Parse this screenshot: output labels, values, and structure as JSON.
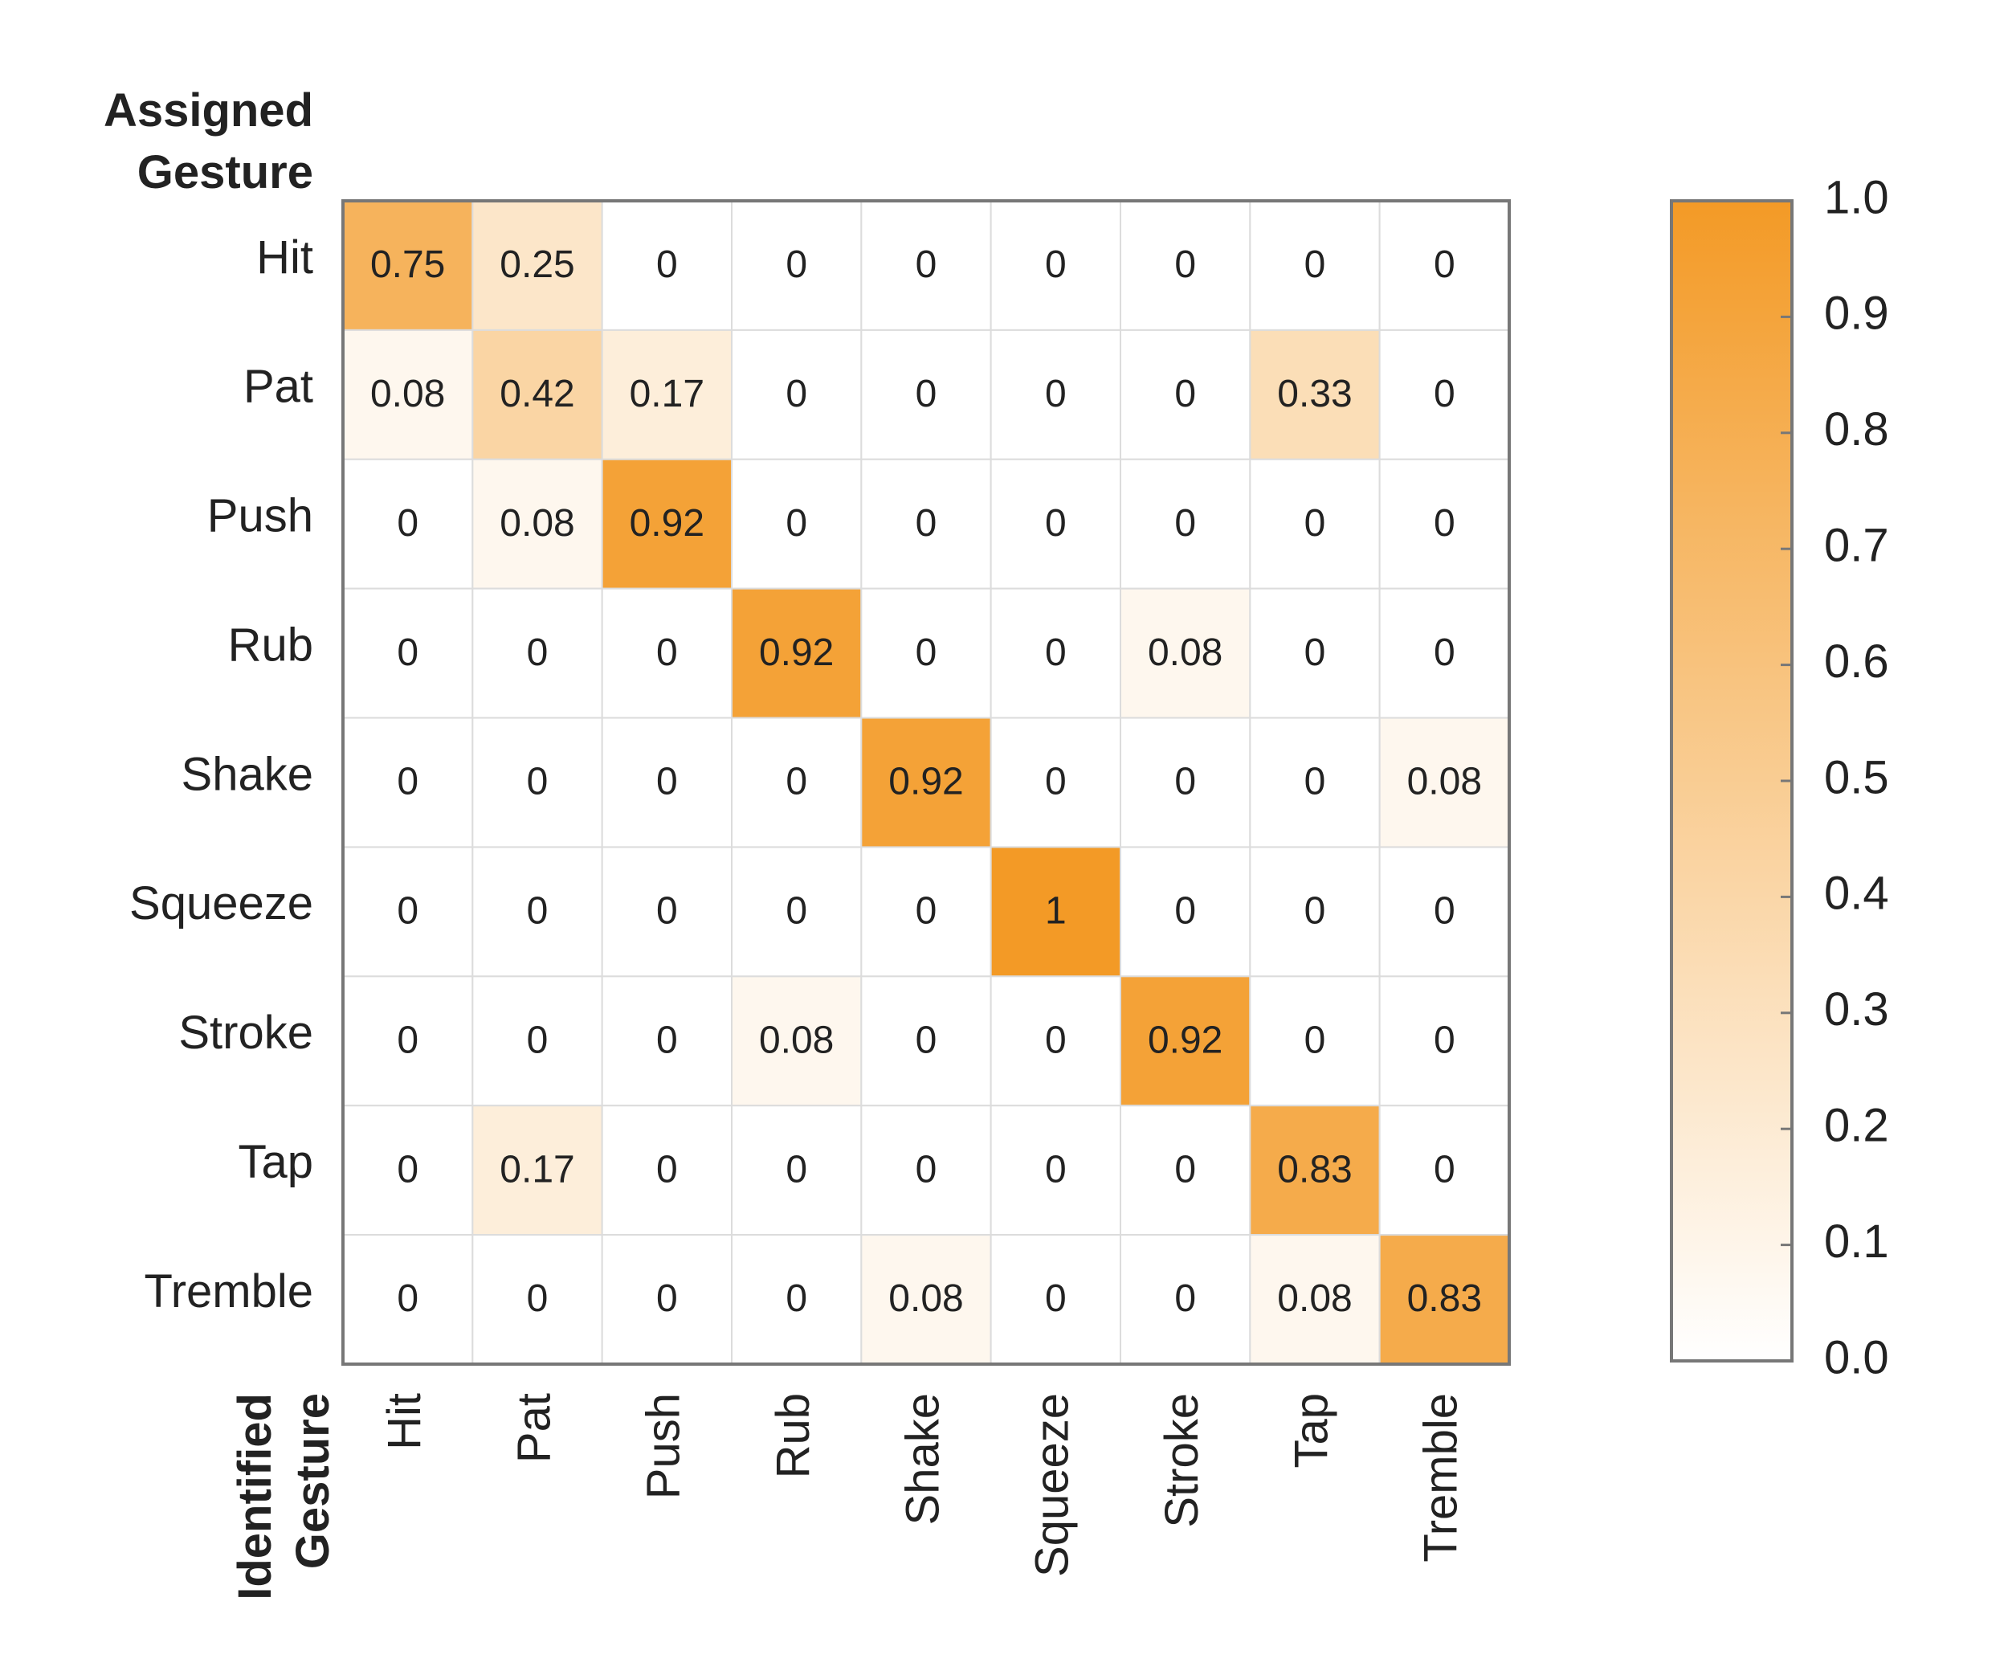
{
  "chart_data": {
    "type": "heatmap",
    "y_label": "Assigned Gesture",
    "x_label": "Identified Gesture",
    "y_categories": [
      "Hit",
      "Pat",
      "Push",
      "Rub",
      "Shake",
      "Squeeze",
      "Stroke",
      "Tap",
      "Tremble"
    ],
    "x_categories": [
      "Hit",
      "Pat",
      "Push",
      "Rub",
      "Shake",
      "Squeeze",
      "Stroke",
      "Tap",
      "Tremble"
    ],
    "values": [
      [
        0.75,
        0.25,
        0,
        0,
        0,
        0,
        0,
        0,
        0
      ],
      [
        0.08,
        0.42,
        0.17,
        0,
        0,
        0,
        0,
        0.33,
        0
      ],
      [
        0,
        0.08,
        0.92,
        0,
        0,
        0,
        0,
        0,
        0
      ],
      [
        0,
        0,
        0,
        0.92,
        0,
        0,
        0.08,
        0,
        0
      ],
      [
        0,
        0,
        0,
        0,
        0.92,
        0,
        0,
        0,
        0.08
      ],
      [
        0,
        0,
        0,
        0,
        0,
        1,
        0,
        0,
        0
      ],
      [
        0,
        0,
        0,
        0.08,
        0,
        0,
        0.92,
        0,
        0
      ],
      [
        0,
        0.17,
        0,
        0,
        0,
        0,
        0,
        0.83,
        0
      ],
      [
        0,
        0,
        0,
        0,
        0.08,
        0,
        0,
        0.08,
        0.83
      ]
    ],
    "colormap": [
      "#ffffff",
      "#f39a26"
    ],
    "zlim": [
      0,
      1
    ],
    "zticks": [
      {
        "value": 0,
        "label": "0.0"
      },
      0.1,
      0.2,
      0.3,
      0.4,
      0.5,
      0.6,
      0.7,
      0.8,
      0.9,
      {
        "value": 1,
        "label": "1.0"
      }
    ]
  }
}
